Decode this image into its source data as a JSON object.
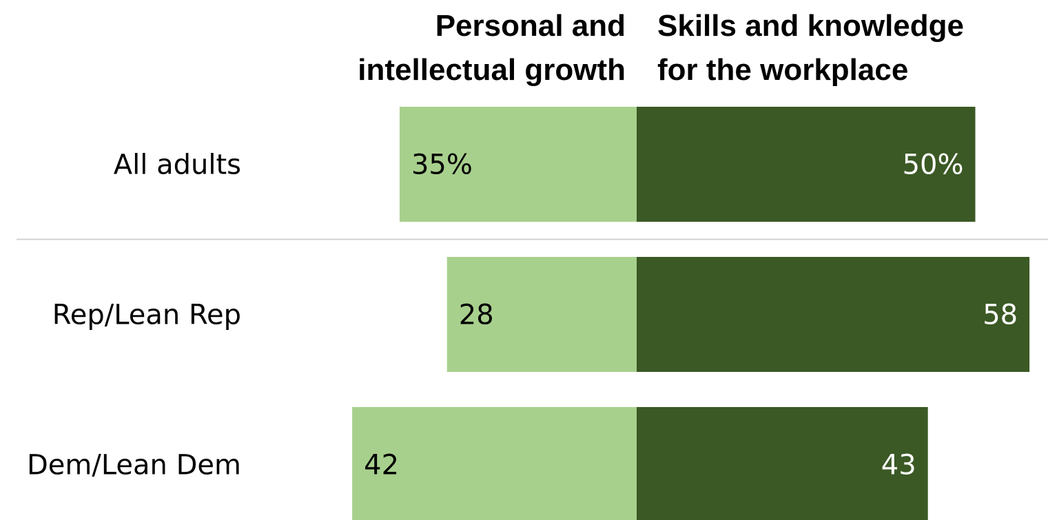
{
  "chart_data": {
    "type": "bar",
    "layout": "diverging-horizontal",
    "column_headers": {
      "left": [
        "Personal and",
        "intellectual growth"
      ],
      "right": [
        "Skills and knowledge",
        "for the workplace"
      ]
    },
    "categories": [
      "All adults",
      "Rep/Lean Rep",
      "Dem/Lean Dem"
    ],
    "series": [
      {
        "name": "Personal and intellectual growth",
        "side": "left",
        "values": [
          35,
          28,
          42
        ],
        "labels": [
          "35%",
          "28",
          "42"
        ],
        "color": "#a8d08d"
      },
      {
        "name": "Skills and knowledge for the workplace",
        "side": "right",
        "values": [
          50,
          58,
          43
        ],
        "labels": [
          "50%",
          "58",
          "43"
        ],
        "color": "#3b5925"
      }
    ],
    "value_label_colors": {
      "left": "#000000",
      "right": "#ffffff"
    },
    "separator_after_row": 0,
    "separator_color": "#d0d0d0",
    "xlim": [
      0,
      100
    ],
    "grid": false,
    "legend": "none"
  }
}
